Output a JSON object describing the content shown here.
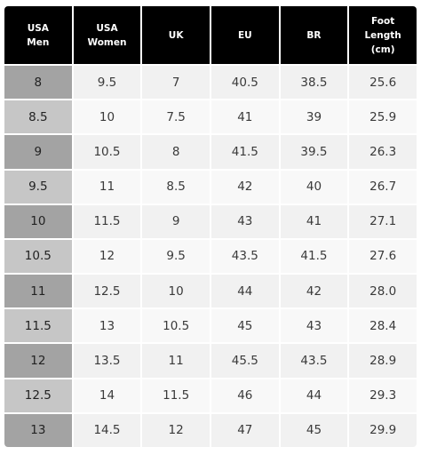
{
  "table": {
    "headers": [
      "USA\nMen",
      "USA\nWomen",
      "UK",
      "EU",
      "BR",
      "Foot\nLength\n(cm)"
    ],
    "rows": [
      [
        "8",
        "9.5",
        "7",
        "40.5",
        "38.5",
        "25.6"
      ],
      [
        "8.5",
        "10",
        "7.5",
        "41",
        "39",
        "25.9"
      ],
      [
        "9",
        "10.5",
        "8",
        "41.5",
        "39.5",
        "26.3"
      ],
      [
        "9.5",
        "11",
        "8.5",
        "42",
        "40",
        "26.7"
      ],
      [
        "10",
        "11.5",
        "9",
        "43",
        "41",
        "27.1"
      ],
      [
        "10.5",
        "12",
        "9.5",
        "43.5",
        "41.5",
        "27.6"
      ],
      [
        "11",
        "12.5",
        "10",
        "44",
        "42",
        "28.0"
      ],
      [
        "11.5",
        "13",
        "10.5",
        "45",
        "43",
        "28.4"
      ],
      [
        "12",
        "13.5",
        "11",
        "45.5",
        "43.5",
        "28.9"
      ],
      [
        "12.5",
        "14",
        "11.5",
        "46",
        "44",
        "29.3"
      ],
      [
        "13",
        "14.5",
        "12",
        "47",
        "45",
        "29.9"
      ]
    ]
  },
  "colors": {
    "header_bg": "#000000",
    "header_text": "#ffffff",
    "men_column_dark": "#a3a3a3",
    "men_column_light": "#c6c6c6",
    "cell_bg": "#f4f4f4"
  }
}
